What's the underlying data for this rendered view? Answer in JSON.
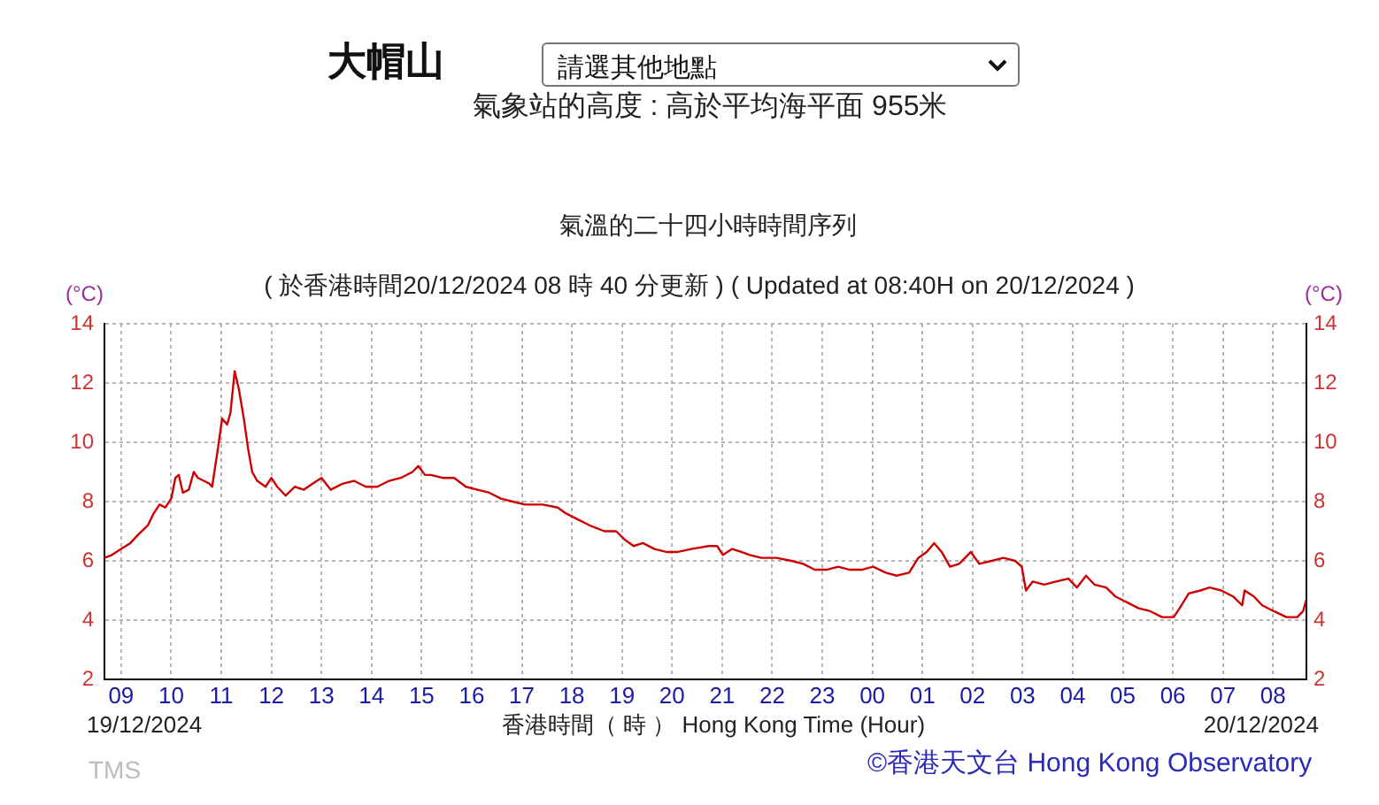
{
  "chart_data": {
    "type": "line",
    "title": "氣溫的二十四小時時間序列",
    "subtitle": "( 於香港時間20/12/2024 08 時 40 分更新 ) ( Updated at 08:40H on 20/12/2024 )",
    "xlabel": "香港時間（ 時 ） Hong Kong Time (Hour)",
    "ylabel": "(°C)",
    "y2label": "(°C)",
    "annotations": [
      "大帽山",
      "請選其他地點",
      "氣象站的高度 : 高於平均海平面 955米",
      "19/12/2024",
      "20/12/2024",
      "TMS",
      "©香港天文台 Hong Kong Observatory"
    ],
    "x": [
      "2024-12-19T08:40",
      "2024-12-19T08:49",
      "2024-12-19T09:00",
      "2024-12-19T09:11",
      "2024-12-19T09:21",
      "2024-12-19T09:32",
      "2024-12-19T09:39",
      "2024-12-19T09:46",
      "2024-12-19T09:53",
      "2024-12-19T10:00",
      "2024-12-19T10:05",
      "2024-12-19T10:09",
      "2024-12-19T10:14",
      "2024-12-19T10:21",
      "2024-12-19T10:27",
      "2024-12-19T10:32",
      "2024-12-19T10:39",
      "2024-12-19T10:46",
      "2024-12-19T10:49",
      "2024-12-19T10:56",
      "2024-12-19T11:01",
      "2024-12-19T11:07",
      "2024-12-19T11:11",
      "2024-12-19T11:16",
      "2024-12-19T11:21",
      "2024-12-19T11:27",
      "2024-12-19T11:32",
      "2024-12-19T11:37",
      "2024-12-19T11:43",
      "2024-12-19T11:53",
      "2024-12-19T12:00",
      "2024-12-19T12:07",
      "2024-12-19T12:17",
      "2024-12-19T12:28",
      "2024-12-19T12:39",
      "2024-12-19T12:49",
      "2024-12-19T13:00",
      "2024-12-19T13:11",
      "2024-12-19T13:25",
      "2024-12-19T13:39",
      "2024-12-19T13:53",
      "2024-12-19T14:07",
      "2024-12-19T14:21",
      "2024-12-19T14:35",
      "2024-12-19T14:49",
      "2024-12-19T14:56",
      "2024-12-19T15:04",
      "2024-12-19T15:11",
      "2024-12-19T15:25",
      "2024-12-19T15:39",
      "2024-12-19T15:53",
      "2024-12-19T16:07",
      "2024-12-19T16:21",
      "2024-12-19T16:35",
      "2024-12-19T16:49",
      "2024-12-19T17:04",
      "2024-12-19T17:25",
      "2024-12-19T17:43",
      "2024-12-19T17:53",
      "2024-12-19T18:07",
      "2024-12-19T18:21",
      "2024-12-19T18:39",
      "2024-12-19T18:53",
      "2024-12-19T19:04",
      "2024-12-19T19:14",
      "2024-12-19T19:25",
      "2024-12-19T19:39",
      "2024-12-19T19:53",
      "2024-12-19T20:07",
      "2024-12-19T20:23",
      "2024-12-19T20:44",
      "2024-12-19T20:54",
      "2024-12-19T21:01",
      "2024-12-19T21:12",
      "2024-12-19T21:23",
      "2024-12-19T21:33",
      "2024-12-19T21:47",
      "2024-12-19T22:05",
      "2024-12-19T22:23",
      "2024-12-19T22:37",
      "2024-12-19T22:51",
      "2024-12-19T23:05",
      "2024-12-19T23:19",
      "2024-12-19T23:33",
      "2024-12-19T23:47",
      "2024-12-20T00:01",
      "2024-12-20T00:16",
      "2024-12-20T00:29",
      "2024-12-20T00:44",
      "2024-12-20T00:55",
      "2024-12-20T01:05",
      "2024-12-20T01:14",
      "2024-12-20T01:23",
      "2024-12-20T01:33",
      "2024-12-20T01:44",
      "2024-12-20T01:58",
      "2024-12-20T02:08",
      "2024-12-20T02:23",
      "2024-12-20T02:37",
      "2024-12-20T02:51",
      "2024-12-20T02:59",
      "2024-12-20T03:04",
      "2024-12-20T03:12",
      "2024-12-20T03:26",
      "2024-12-20T03:40",
      "2024-12-20T03:55",
      "2024-12-20T04:05",
      "2024-12-20T04:16",
      "2024-12-20T04:26",
      "2024-12-20T04:40",
      "2024-12-20T04:51",
      "2024-12-20T05:05",
      "2024-12-20T05:19",
      "2024-12-20T05:33",
      "2024-12-20T05:47",
      "2024-12-20T06:01",
      "2024-12-20T06:08",
      "2024-12-20T06:19",
      "2024-12-20T06:33",
      "2024-12-20T06:44",
      "2024-12-20T06:58",
      "2024-12-20T07:12",
      "2024-12-20T07:23",
      "2024-12-20T07:26",
      "2024-12-20T07:37",
      "2024-12-20T07:47",
      "2024-12-20T08:01",
      "2024-12-20T08:16",
      "2024-12-20T08:29",
      "2024-12-20T08:36",
      "2024-12-20T08:40"
    ],
    "series": [
      {
        "color": "#cc0000",
        "values": [
          6.1,
          6.2,
          6.4,
          6.6,
          6.9,
          7.2,
          7.6,
          7.9,
          7.8,
          8.1,
          8.8,
          8.9,
          8.3,
          8.4,
          9.0,
          8.8,
          8.7,
          8.6,
          8.5,
          9.8,
          10.8,
          10.6,
          11.0,
          12.4,
          11.8,
          10.8,
          9.8,
          9.0,
          8.7,
          8.5,
          8.8,
          8.5,
          8.2,
          8.5,
          8.4,
          8.6,
          8.8,
          8.4,
          8.6,
          8.7,
          8.5,
          8.5,
          8.7,
          8.8,
          9.0,
          9.2,
          8.9,
          8.9,
          8.8,
          8.8,
          8.5,
          8.4,
          8.3,
          8.1,
          8.0,
          7.9,
          7.9,
          7.8,
          7.6,
          7.4,
          7.2,
          7.0,
          7.0,
          6.7,
          6.5,
          6.6,
          6.4,
          6.3,
          6.3,
          6.4,
          6.5,
          6.5,
          6.2,
          6.4,
          6.3,
          6.2,
          6.1,
          6.1,
          6.0,
          5.9,
          5.7,
          5.7,
          5.8,
          5.7,
          5.7,
          5.8,
          5.6,
          5.5,
          5.6,
          6.1,
          6.3,
          6.6,
          6.3,
          5.8,
          5.9,
          6.3,
          5.9,
          6.0,
          6.1,
          6.0,
          5.8,
          5.0,
          5.3,
          5.2,
          5.3,
          5.4,
          5.1,
          5.5,
          5.2,
          5.1,
          4.8,
          4.6,
          4.4,
          4.3,
          4.1,
          4.1,
          4.4,
          4.9,
          5.0,
          5.1,
          5.0,
          4.8,
          4.5,
          5.0,
          4.8,
          4.5,
          4.3,
          4.1,
          4.1,
          4.3,
          4.7
        ]
      }
    ],
    "xlim": [
      "2024-12-19T08:40",
      "2024-12-20T08:40"
    ],
    "xticks": [
      {
        "value": "2024-12-19T09:00",
        "label": "09"
      },
      {
        "value": "2024-12-19T10:00",
        "label": "10"
      },
      {
        "value": "2024-12-19T11:00",
        "label": "11"
      },
      {
        "value": "2024-12-19T12:00",
        "label": "12"
      },
      {
        "value": "2024-12-19T13:00",
        "label": "13"
      },
      {
        "value": "2024-12-19T14:00",
        "label": "14"
      },
      {
        "value": "2024-12-19T15:00",
        "label": "15"
      },
      {
        "value": "2024-12-19T16:00",
        "label": "16"
      },
      {
        "value": "2024-12-19T17:00",
        "label": "17"
      },
      {
        "value": "2024-12-19T18:00",
        "label": "18"
      },
      {
        "value": "2024-12-19T19:00",
        "label": "19"
      },
      {
        "value": "2024-12-19T20:00",
        "label": "20"
      },
      {
        "value": "2024-12-19T21:00",
        "label": "21"
      },
      {
        "value": "2024-12-19T22:00",
        "label": "22"
      },
      {
        "value": "2024-12-19T23:00",
        "label": "23"
      },
      {
        "value": "2024-12-20T00:00",
        "label": "00"
      },
      {
        "value": "2024-12-20T01:00",
        "label": "01"
      },
      {
        "value": "2024-12-20T02:00",
        "label": "02"
      },
      {
        "value": "2024-12-20T03:00",
        "label": "03"
      },
      {
        "value": "2024-12-20T04:00",
        "label": "04"
      },
      {
        "value": "2024-12-20T05:00",
        "label": "05"
      },
      {
        "value": "2024-12-20T06:00",
        "label": "06"
      },
      {
        "value": "2024-12-20T07:00",
        "label": "07"
      },
      {
        "value": "2024-12-20T08:00",
        "label": "08"
      }
    ],
    "ylim": [
      2,
      14
    ],
    "yticks": [
      2,
      4,
      6,
      8,
      10,
      12,
      14
    ],
    "y2lim": [
      2,
      14
    ],
    "y2ticks": [
      2,
      4,
      6,
      8,
      10,
      12,
      14
    ],
    "grid": true
  }
}
